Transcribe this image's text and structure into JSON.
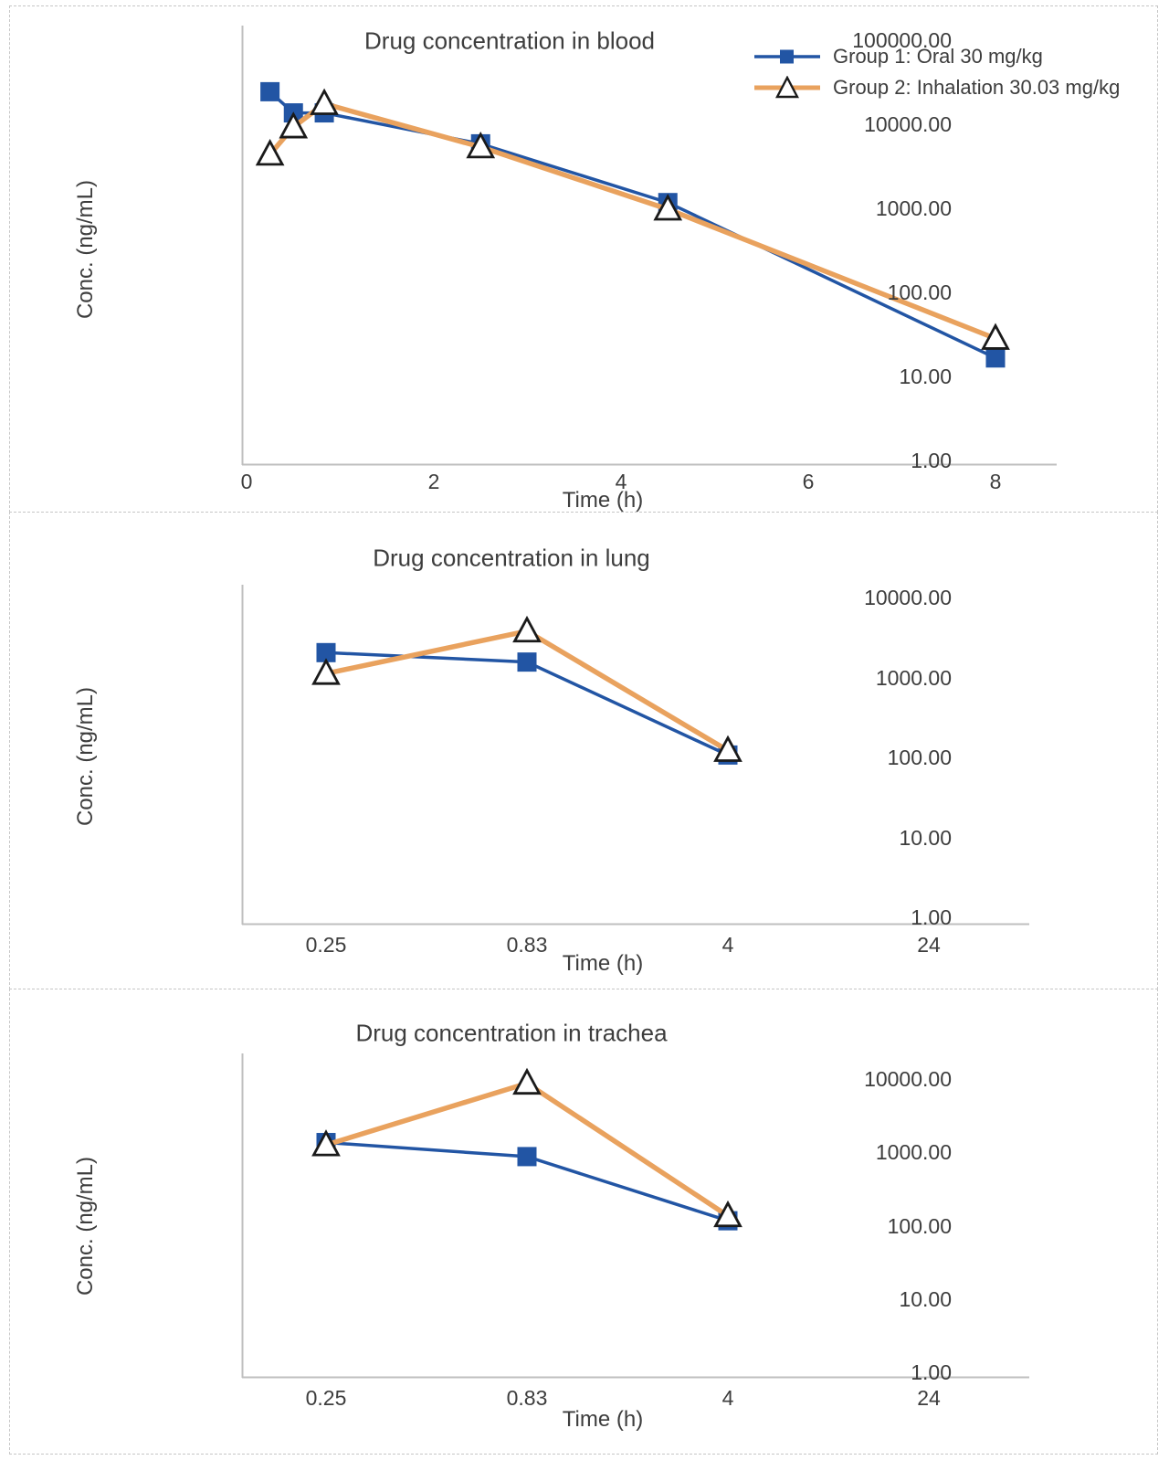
{
  "page": {
    "background": "#ffffff",
    "panel_border_color": "#c6c6c6"
  },
  "colors": {
    "group1_blue": "#2255a4",
    "group2_orange": "#e9a25e",
    "marker_stroke": "#1a1a1a",
    "axis_line": "#bfbfbf",
    "text": "#3d3d3d"
  },
  "legend": {
    "position": "top-right-of-first-chart",
    "items": [
      {
        "series": "group1",
        "marker": "square",
        "label": "Group 1: Oral 30 mg/kg"
      },
      {
        "series": "group2",
        "marker": "triangle",
        "label": "Group 2: Inhalation 30.03 mg/kg"
      }
    ]
  },
  "chart_data": [
    {
      "id": "blood",
      "type": "line",
      "title": "Drug concentration in blood",
      "xlabel": "Time (h)",
      "ylabel": "Conc. (ng/mL)",
      "x_axis": {
        "scale": "linear",
        "ticks": [
          "0",
          "2",
          "4",
          "6",
          "8"
        ],
        "range": [
          0,
          8.65
        ]
      },
      "y_axis": {
        "scale": "log",
        "ticks": [
          "100000.00",
          "10000.00",
          "1000.00",
          "100.00",
          "10.00",
          "1.00"
        ],
        "range": [
          1,
          100000
        ]
      },
      "grid": false,
      "legend_visible": true,
      "series": [
        {
          "name": "Group 1: Oral 30 mg/kg",
          "marker": "square",
          "color_key": "group1_blue",
          "x": [
            0.25,
            0.5,
            0.83,
            2.5,
            4.5,
            8
          ],
          "y": [
            25000,
            14000,
            14000,
            6000,
            1200,
            17
          ]
        },
        {
          "name": "Group 2: Inhalation 30.03 mg/kg",
          "marker": "triangle",
          "color_key": "group2_orange",
          "x": [
            0.25,
            0.5,
            0.83,
            2.5,
            4.5,
            8
          ],
          "y": [
            4500,
            9500,
            18000,
            5500,
            1000,
            29
          ]
        }
      ]
    },
    {
      "id": "lung",
      "type": "line",
      "title": "Drug concentration in lung",
      "xlabel": "Time (h)",
      "ylabel": "Conc. (ng/mL)",
      "x_axis": {
        "scale": "category",
        "categories": [
          "0.25",
          "0.83",
          "4",
          "24"
        ]
      },
      "y_axis": {
        "scale": "log",
        "ticks": [
          "10000.00",
          "1000.00",
          "100.00",
          "10.00",
          "1.00"
        ],
        "range": [
          1,
          10000
        ]
      },
      "grid": false,
      "legend_visible": false,
      "series": [
        {
          "name": "Group 1: Oral 30 mg/kg",
          "marker": "square",
          "color_key": "group1_blue",
          "category_indices": [
            0,
            1,
            2
          ],
          "y": [
            2100,
            1600,
            110
          ]
        },
        {
          "name": "Group 2: Inhalation 30.03 mg/kg",
          "marker": "triangle",
          "color_key": "group2_orange",
          "category_indices": [
            0,
            1,
            2
          ],
          "y": [
            1150,
            3900,
            125
          ]
        }
      ]
    },
    {
      "id": "trachea",
      "type": "line",
      "title": "Drug concentration in trachea",
      "xlabel": "Time (h)",
      "ylabel": "Conc. (ng/mL)",
      "x_axis": {
        "scale": "category",
        "categories": [
          "0.25",
          "0.83",
          "4",
          "24"
        ]
      },
      "y_axis": {
        "scale": "log",
        "ticks": [
          "10000.00",
          "1000.00",
          "100.00",
          "10.00",
          "1.00"
        ],
        "range": [
          1,
          10000
        ]
      },
      "grid": false,
      "legend_visible": false,
      "series": [
        {
          "name": "Group 1: Oral 30 mg/kg",
          "marker": "square",
          "color_key": "group1_blue",
          "category_indices": [
            0,
            1,
            2
          ],
          "y": [
            1400,
            900,
            120
          ]
        },
        {
          "name": "Group 2: Inhalation 30.03 mg/kg",
          "marker": "triangle",
          "color_key": "group2_orange",
          "category_indices": [
            0,
            1,
            2
          ],
          "y": [
            1300,
            9000,
            140
          ]
        }
      ]
    }
  ]
}
